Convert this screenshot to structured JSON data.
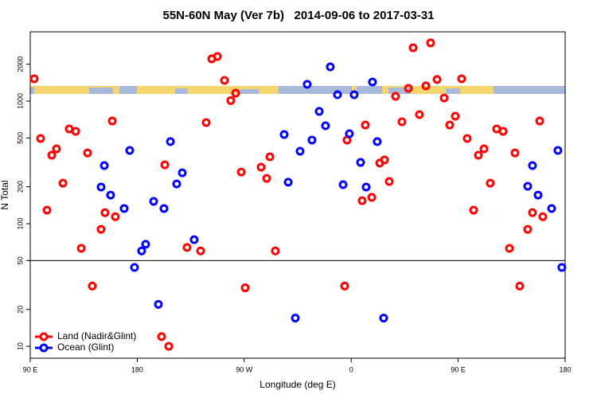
{
  "chart_data": {
    "type": "scatter",
    "title": "55N-60N May (Ver 7b)   2014-09-06 to 2017-03-31",
    "x_label": "Longitude (deg E)",
    "y_label": "N Total",
    "log_y": true,
    "xlim": [
      90,
      540
    ],
    "ylim": [
      8,
      3670
    ],
    "xticks": [
      {
        "value": 90,
        "label": "90 E"
      },
      180,
      {
        "value": 270,
        "label": "90 W"
      },
      {
        "value": 360,
        "label": "0"
      },
      {
        "value": 450,
        "label": "90 E"
      },
      {
        "value": 540,
        "label": "180"
      }
    ],
    "yticks": [
      10,
      20,
      50,
      100,
      200,
      500,
      1000,
      2000
    ],
    "hline": 50,
    "legend": "bottom-left",
    "series": [
      {
        "name": "Land (Nadir&Glint)",
        "color": "#ff0000",
        "x": [
          93.3,
          98.7,
          104.1,
          108.1,
          112.1,
          117.5,
          122.8,
          128.2,
          132.9,
          138.2,
          142.2,
          149.6,
          152.9,
          159.0,
          161.6,
          200.5,
          203.2,
          206.5,
          221.9,
          233.3,
          238.0,
          242.7,
          247.4,
          253.4,
          258.7,
          262.8,
          267.5,
          270.8,
          284.2,
          288.9,
          291.6,
          296.2,
          354.5,
          356.5,
          369.2,
          371.9,
          377.3,
          384.0,
          388.0,
          392.0,
          397.3,
          402.7,
          408.1,
          412.1,
          417.4,
          422.8,
          426.8,
          432.2,
          438.2,
          442.9,
          447.6,
          452.9,
          457.6,
          463.0,
          467.0,
          471.7,
          477.0,
          482.4,
          487.8,
          493.1,
          497.8,
          501.8,
          508.5,
          512.5,
          518.6,
          521.2
        ],
        "values": [
          1520,
          495,
          129,
          362,
          408,
          214,
          593,
          567,
          63,
          378,
          31,
          90,
          123,
          688,
          114,
          12,
          302,
          10,
          64,
          60,
          668,
          2210,
          2310,
          1475,
          1010,
          1160,
          264,
          30,
          289,
          234,
          351,
          60,
          31,
          481,
          154,
          638,
          164,
          312,
          331,
          221,
          1094,
          678,
          1270,
          2720,
          776,
          1330,
          2980,
          1500,
          1060,
          638,
          753,
          1520,
          495,
          129,
          362,
          408,
          214,
          593,
          567,
          63,
          378,
          31,
          90,
          123,
          688,
          114
        ]
      },
      {
        "name": "Ocean (Glint)",
        "color": "#0000ff",
        "x": [
          149.6,
          152.3,
          157.6,
          169.0,
          173.7,
          177.7,
          183.7,
          187.1,
          193.8,
          197.8,
          202.5,
          207.9,
          213.2,
          217.9,
          227.9,
          303.6,
          307.0,
          313.0,
          317.0,
          323.0,
          327.0,
          333.1,
          338.4,
          342.4,
          348.5,
          353.2,
          358.5,
          362.5,
          367.9,
          372.6,
          377.9,
          381.9,
          387.3,
          508.5,
          512.5,
          517.2,
          528.6,
          533.9,
          537.2
        ],
        "values": [
          199,
          298,
          171,
          133,
          396,
          44,
          60,
          68,
          152,
          22,
          133,
          467,
          211,
          260,
          74,
          534,
          218,
          17,
          390,
          1370,
          481,
          824,
          629,
          1900,
          1127,
          208,
          542,
          1127,
          316,
          199,
          1432,
          467,
          17,
          202,
          298,
          171,
          133,
          396,
          44
        ]
      }
    ]
  }
}
